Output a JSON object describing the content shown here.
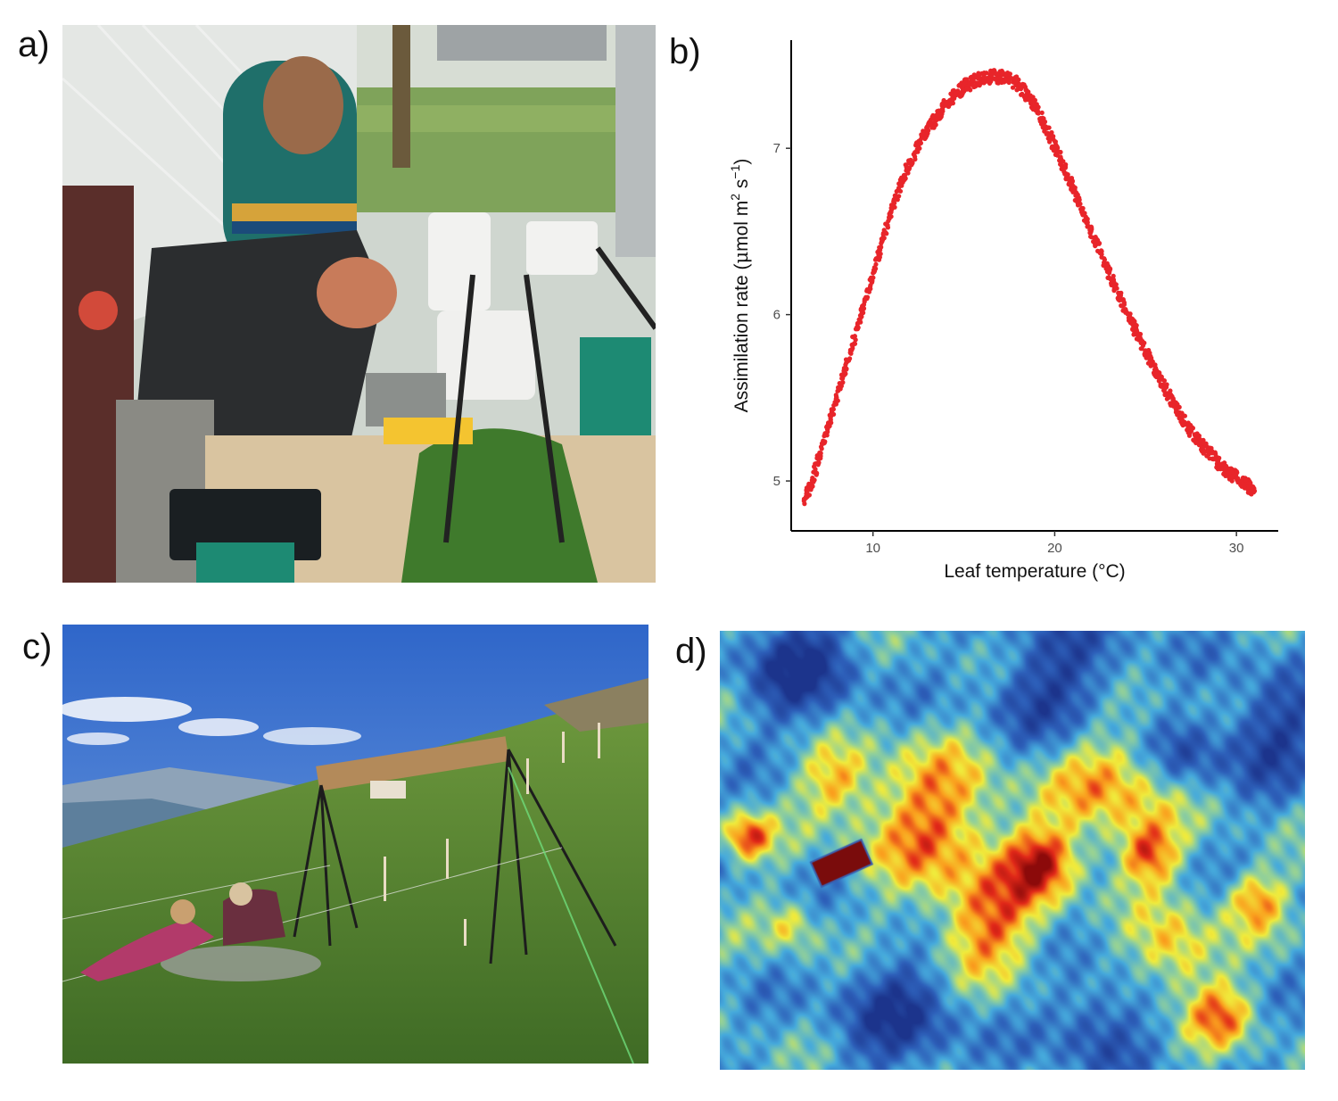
{
  "figure": {
    "panels": [
      {
        "label": "a)",
        "kind": "photo",
        "icon": "greenhouse-measurement-photo"
      },
      {
        "label": "b)",
        "kind": "chart"
      },
      {
        "label": "c)",
        "kind": "photo",
        "icon": "alpine-field-site-photo"
      },
      {
        "label": "d)",
        "kind": "thermal-image",
        "icon": "thermal-camera-heatmap"
      }
    ]
  },
  "colors": {
    "points": "#e8252a",
    "axis": "#000000",
    "tick_text": "#4d4d4d",
    "heat_low": "#1f3f99",
    "heat_high": "#8b0a0a"
  },
  "chart_data": {
    "type": "scatter",
    "title": "",
    "xlabel": "Leaf temperature (°C)",
    "ylabel_main": "Assimilation rate (",
    "ylabel_mu": "μ",
    "ylabel_rest": "mol m",
    "ylabel_sup1": "2",
    "ylabel_s": " s",
    "ylabel_sup2": "−1",
    "ylabel_close": ")",
    "xlim": [
      5.5,
      32.3
    ],
    "ylim": [
      4.7,
      7.65
    ],
    "xticks": [
      10,
      20,
      30
    ],
    "yticks": [
      5,
      6,
      7
    ],
    "grid": false,
    "legend": "none",
    "series": [
      {
        "color": "#e8252a",
        "x": [
          6.2,
          6.6,
          7.0,
          7.5,
          8.0,
          8.5,
          9.0,
          9.5,
          10.0,
          10.5,
          11.0,
          11.5,
          12.0,
          12.5,
          13.0,
          13.5,
          14.0,
          14.5,
          15.0,
          15.5,
          16.0,
          16.5,
          17.0,
          17.5,
          18.0,
          18.5,
          19.0,
          19.5,
          20.0,
          20.5,
          21.0,
          21.5,
          22.0,
          22.5,
          23.0,
          23.5,
          24.0,
          24.5,
          25.0,
          25.5,
          26.0,
          26.5,
          27.0,
          27.5,
          28.0,
          28.5,
          29.0,
          29.5,
          30.0,
          30.5,
          31.0
        ],
        "y": [
          4.88,
          4.98,
          5.13,
          5.31,
          5.5,
          5.68,
          5.87,
          6.06,
          6.25,
          6.44,
          6.62,
          6.78,
          6.91,
          7.02,
          7.11,
          7.19,
          7.26,
          7.32,
          7.37,
          7.4,
          7.42,
          7.43,
          7.43,
          7.42,
          7.38,
          7.32,
          7.24,
          7.13,
          7.01,
          6.89,
          6.76,
          6.63,
          6.5,
          6.37,
          6.25,
          6.13,
          6.01,
          5.89,
          5.78,
          5.67,
          5.57,
          5.47,
          5.38,
          5.3,
          5.23,
          5.17,
          5.11,
          5.06,
          5.02,
          4.98,
          4.94
        ]
      }
    ]
  }
}
